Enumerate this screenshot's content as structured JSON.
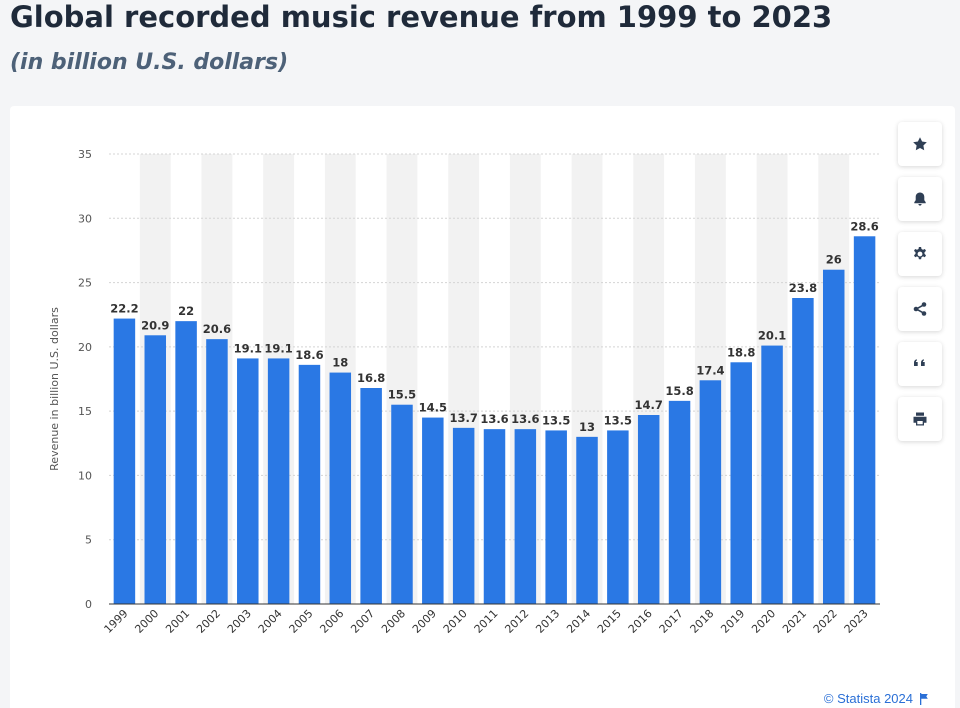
{
  "header": {
    "title": "Global recorded music revenue from 1999 to 2023",
    "subtitle": "(in billion U.S. dollars)"
  },
  "toolbar": {
    "buttons": [
      {
        "name": "favorite",
        "icon": "star-icon"
      },
      {
        "name": "notification",
        "icon": "bell-icon"
      },
      {
        "name": "settings",
        "icon": "gear-icon"
      },
      {
        "name": "share",
        "icon": "share-icon"
      },
      {
        "name": "cite",
        "icon": "quote-icon"
      },
      {
        "name": "print",
        "icon": "print-icon"
      }
    ]
  },
  "credit": {
    "text": "© Statista 2024",
    "icon": "flag-icon"
  },
  "colors": {
    "bar": "#2a78e4",
    "band": "#f2f2f2",
    "credit": "#2a6fd6"
  },
  "chart_data": {
    "type": "bar",
    "title": "Global recorded music revenue from 1999 to 2023",
    "subtitle": "(in billion U.S. dollars)",
    "xlabel": "",
    "ylabel": "Revenue in billion U.S. dollars",
    "ylim": [
      0,
      35
    ],
    "yticks": [
      0,
      5,
      10,
      15,
      20,
      25,
      30,
      35
    ],
    "grid": true,
    "categories": [
      "1999",
      "2000",
      "2001",
      "2002",
      "2003",
      "2004",
      "2005",
      "2006",
      "2007",
      "2008",
      "2009",
      "2010",
      "2011",
      "2012",
      "2013",
      "2014",
      "2015",
      "2016",
      "2017",
      "2018",
      "2019",
      "2020",
      "2021",
      "2022",
      "2023"
    ],
    "values": [
      22.2,
      20.9,
      22,
      20.6,
      19.1,
      19.1,
      18.6,
      18,
      16.8,
      15.5,
      14.5,
      13.7,
      13.6,
      13.6,
      13.5,
      13,
      13.5,
      14.7,
      15.8,
      17.4,
      18.8,
      20.1,
      23.8,
      26,
      28.6
    ],
    "labels": [
      "22.2",
      "20.9",
      "22",
      "20.6",
      "19.1",
      "19.1",
      "18.6",
      "18",
      "16.8",
      "15.5",
      "14.5",
      "13.7",
      "13.6",
      "13.6",
      "13.5",
      "13",
      "13.5",
      "14.7",
      "15.8",
      "17.4",
      "18.8",
      "20.1",
      "23.8",
      "26",
      "28.6"
    ]
  }
}
